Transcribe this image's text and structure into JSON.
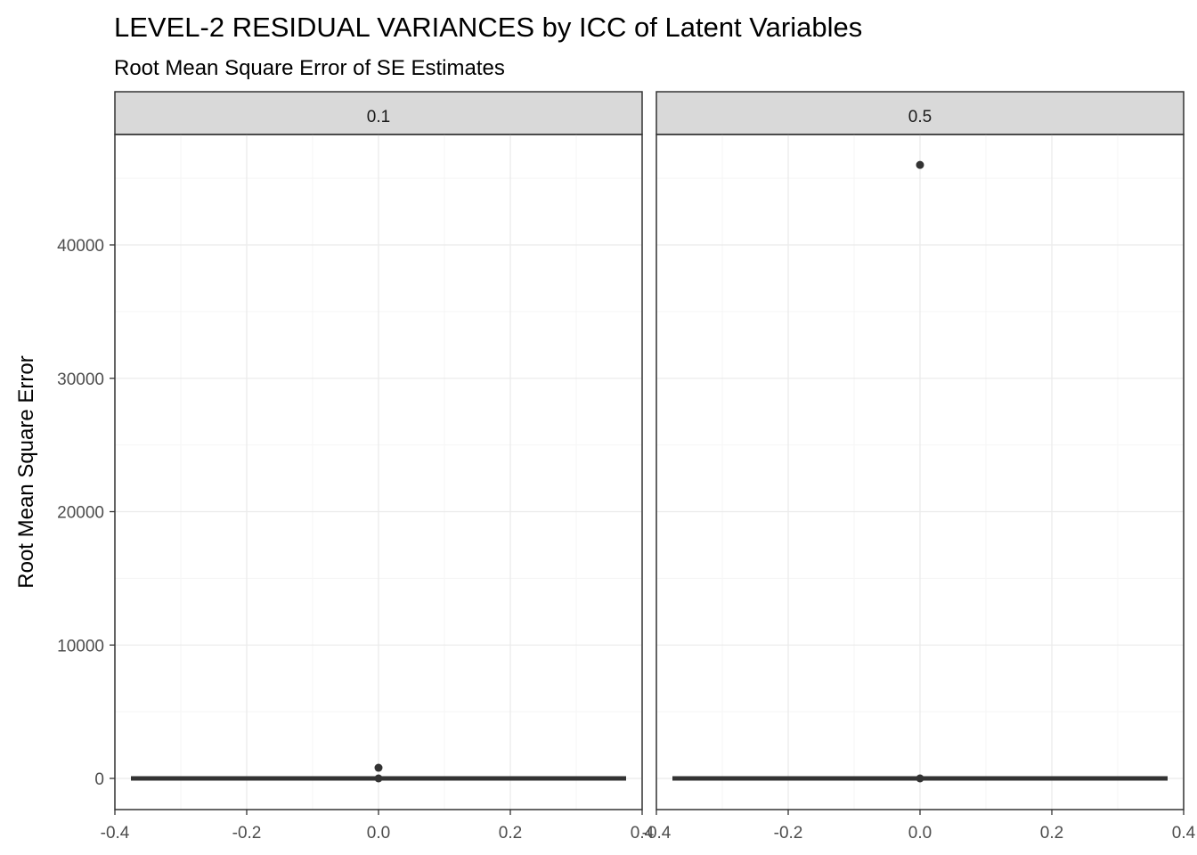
{
  "chart_data": {
    "type": "boxplot",
    "title": "LEVEL-2 RESIDUAL VARIANCES by ICC of Latent Variables",
    "subtitle": "Root Mean Square Error of SE Estimates",
    "xlabel": "",
    "ylabel": "Root Mean Square Error",
    "xlim": [
      -0.4,
      0.4
    ],
    "ylim": [
      0,
      48000
    ],
    "x_ticks": [
      "-0.4",
      "-0.2",
      "0.0",
      "0.2",
      "0.4"
    ],
    "y_ticks": [
      "0",
      "10000",
      "20000",
      "30000",
      "40000"
    ],
    "grid": true,
    "facets": [
      {
        "label": "0.1",
        "box": {
          "x_center": 0.0,
          "width": 0.75,
          "q1": 0,
          "median": 0,
          "q3": 0,
          "whisker_low": 0,
          "whisker_high": 0
        },
        "outliers": [
          {
            "x": 0.0,
            "y": 800
          },
          {
            "x": 0.0,
            "y": 0
          }
        ]
      },
      {
        "label": "0.5",
        "box": {
          "x_center": 0.0,
          "width": 0.75,
          "q1": 0,
          "median": 0,
          "q3": 0,
          "whisker_low": 0,
          "whisker_high": 0
        },
        "outliers": [
          {
            "x": 0.0,
            "y": 46000
          },
          {
            "x": 0.0,
            "y": 0
          }
        ]
      }
    ],
    "colors": {
      "point": "#333333",
      "box": "#333333",
      "panel_border": "#333333",
      "strip_fill": "#d9d9d9",
      "grid_major": "#ebebeb",
      "grid_minor": "#f5f5f5"
    }
  }
}
